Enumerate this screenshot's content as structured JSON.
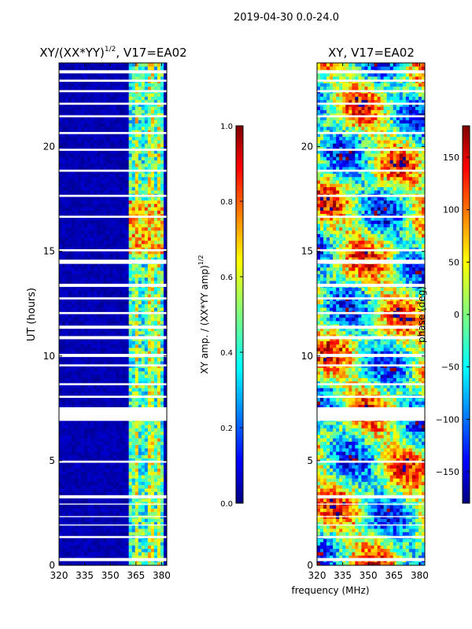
{
  "suptitle": "2019-04-30 0.0-24.0",
  "chart_data": [
    {
      "type": "heatmap",
      "title": "XY/(XX*YY)",
      "title_exponent": "1/2",
      "title_suffix": ", V17=EA02",
      "xlabel": "",
      "ylabel": "UT (hours)",
      "xlim": [
        320,
        383
      ],
      "ylim": [
        0,
        24
      ],
      "xticks": [
        320,
        335,
        350,
        365,
        380
      ],
      "yticks": [
        0,
        5,
        10,
        15,
        20
      ],
      "colorbar": {
        "label": "XY amp. / (XX*YY amp)",
        "label_exponent": "1/2",
        "range": [
          0.0,
          1.0
        ],
        "ticks": [
          "0.0",
          "0.2",
          "0.4",
          "0.6",
          "0.8",
          "1.0"
        ]
      }
    },
    {
      "type": "heatmap",
      "title": "XY, V17=EA02",
      "xlabel": "frequency (MHz)",
      "ylabel": "",
      "xlim": [
        320,
        383
      ],
      "ylim": [
        0,
        24
      ],
      "xticks": [
        320,
        335,
        350,
        365,
        380
      ],
      "yticks": [
        0,
        5,
        10,
        15,
        20
      ],
      "colorbar": {
        "label": "phase (deg)",
        "range": [
          -180,
          180
        ],
        "ticks": [
          "-150",
          "-100",
          "-50",
          "0",
          "50",
          "100",
          "150"
        ]
      }
    }
  ],
  "colors": {
    "jet": [
      "#00007f",
      "#0000ff",
      "#007fff",
      "#00ffff",
      "#7fff7f",
      "#ffff00",
      "#ff7f00",
      "#ff0000",
      "#7f0000"
    ]
  }
}
